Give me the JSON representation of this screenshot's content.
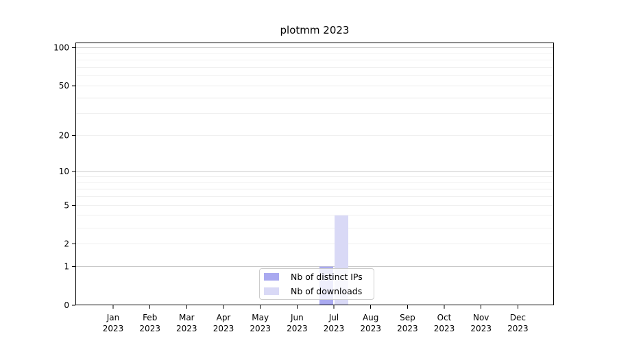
{
  "chart_data": {
    "type": "bar",
    "title": "plotmm 2023",
    "categories": [
      "Jan",
      "Feb",
      "Mar",
      "Apr",
      "May",
      "Jun",
      "Jul",
      "Aug",
      "Sep",
      "Oct",
      "Nov",
      "Dec"
    ],
    "year_label": "2023",
    "series": [
      {
        "name": "Nb of distinct IPs",
        "color": "#a9a9f0",
        "values": [
          0,
          0,
          0,
          0,
          0,
          0,
          1,
          0,
          0,
          0,
          0,
          0
        ]
      },
      {
        "name": "Nb of downloads",
        "color": "#d9d9f6",
        "values": [
          0,
          0,
          0,
          0,
          0,
          0,
          4,
          0,
          0,
          0,
          0,
          0
        ]
      }
    ],
    "xlabel": "",
    "ylabel": "",
    "y_axis": {
      "scale": "log1p",
      "ylim": [
        0,
        110
      ],
      "ticks": [
        0,
        1,
        2,
        5,
        10,
        20,
        50,
        100
      ],
      "major_gridlines": [
        1,
        10,
        100
      ],
      "minor_gridlines": [
        2,
        3,
        4,
        5,
        6,
        7,
        8,
        9,
        20,
        30,
        40,
        50,
        60,
        70,
        80,
        90
      ]
    },
    "legend_position": "lower center",
    "grid": "on",
    "colors": {
      "major_grid": "#c9c9c9",
      "minor_grid": "#f0f0f0",
      "axis": "#000000",
      "background": "#ffffff"
    }
  }
}
